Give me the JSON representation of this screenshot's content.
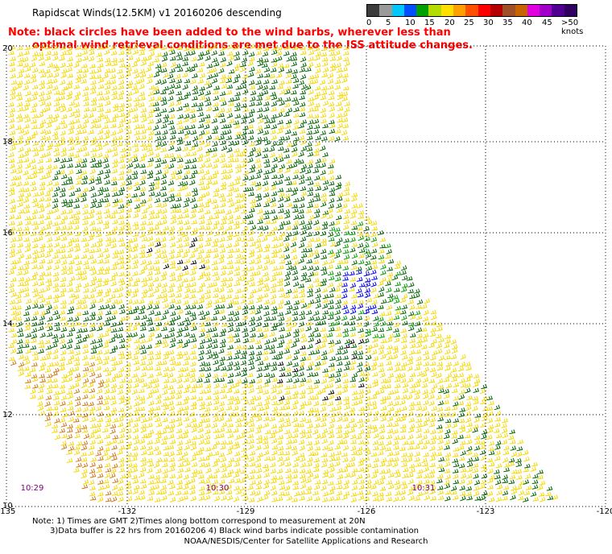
{
  "title": "Rapidscat Winds(12.5KM) v1 20160206 descending",
  "note": {
    "line1": "Note: black circles have been added to the wind barbs, wherever less than",
    "line2": "optimal wind retrieval conditions are met due to the ISS attitude changes."
  },
  "color_scale": {
    "labels": [
      "0",
      "5",
      "10",
      "15",
      "20",
      "25",
      "30",
      "35",
      "40",
      "45",
      ">50 knots"
    ],
    "colors": [
      "#3c3c3c",
      "#9a9a9a",
      "#00c8ff",
      "#0050ff",
      "#00a000",
      "#b4dc00",
      "#ffe000",
      "#ffa000",
      "#ff5000",
      "#ff0000",
      "#b40000",
      "#a05028",
      "#c86400",
      "#e000e0",
      "#a000c8",
      "#500090",
      "#300060"
    ]
  },
  "axes": {
    "lat_labels": [
      "20",
      "18",
      "16",
      "14",
      "12",
      "10"
    ],
    "lon_labels": [
      "-135",
      "-132",
      "-129",
      "-126",
      "-123",
      "-120"
    ]
  },
  "time_labels": [
    "10:29",
    "10:30",
    "10:31"
  ],
  "footer": {
    "line1": "Note: 1) Times are GMT 2)Times along bottom correspond to measurement at 20N",
    "line2": "3)Data buffer is 22 hrs from 20160206 4) Black wind barbs indicate possible contamination",
    "line3": "NOAA/NESDIS/Center for Satellite Applications and Research"
  },
  "wind_colors": {
    "yellow": "#f5d800",
    "dark_green": "#006400",
    "green": "#00a000",
    "blue": "#0000ff",
    "orange": "#d2781e",
    "black": "#000000"
  }
}
